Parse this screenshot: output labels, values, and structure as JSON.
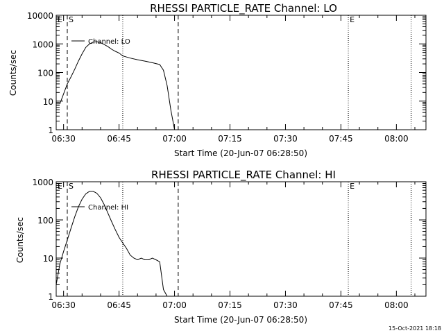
{
  "footer": {
    "timestamp": "15-Oct-2021 18:18"
  },
  "chart_data": [
    {
      "type": "line",
      "title": "RHESSI PARTICLE_RATE Channel: LO",
      "xlabel": "Start Time (20-Jun-07 06:28:50)",
      "ylabel": "Counts/sec",
      "y_scale": "log",
      "xlim": [
        "06:28",
        "08:08"
      ],
      "ylim": [
        1,
        10000
      ],
      "x_ticks": [
        "06:30",
        "06:45",
        "07:00",
        "07:15",
        "07:30",
        "07:45",
        "08:00"
      ],
      "y_ticks": [
        "1",
        "10",
        "100",
        "1000",
        "10000"
      ],
      "legend_position": "top-left",
      "markers": [
        {
          "label": "E",
          "time": "06:28",
          "style": "dotted"
        },
        {
          "label": "S",
          "time": "06:31",
          "style": "dashed"
        },
        {
          "label": "",
          "time": "06:46",
          "style": "dotted"
        },
        {
          "label": "",
          "time": "07:01",
          "style": "dashed"
        },
        {
          "label": "E",
          "time": "07:47",
          "style": "dotted"
        },
        {
          "label": "",
          "time": "08:04",
          "style": "dotted"
        }
      ],
      "series": [
        {
          "name": "Channel: LO",
          "x": [
            "06:29",
            "06:30",
            "06:31",
            "06:32",
            "06:33",
            "06:34",
            "06:35",
            "06:36",
            "06:37",
            "06:38",
            "06:39",
            "06:40",
            "06:41",
            "06:42",
            "06:43",
            "06:44",
            "06:45",
            "06:46",
            "06:48",
            "06:50",
            "06:52",
            "06:54",
            "06:56",
            "06:57",
            "06:58",
            "06:59",
            "07:00"
          ],
          "y": [
            8,
            18,
            40,
            70,
            130,
            250,
            450,
            750,
            1000,
            1150,
            1200,
            1100,
            950,
            800,
            650,
            550,
            480,
            380,
            320,
            280,
            250,
            220,
            190,
            120,
            35,
            5,
            1
          ]
        }
      ]
    },
    {
      "type": "line",
      "title": "RHESSI PARTICLE_RATE Channel: HI",
      "xlabel": "Start Time (20-Jun-07 06:28:50)",
      "ylabel": "Counts/sec",
      "y_scale": "log",
      "xlim": [
        "06:28",
        "08:08"
      ],
      "ylim": [
        1,
        1000
      ],
      "x_ticks": [
        "06:30",
        "06:45",
        "07:00",
        "07:15",
        "07:30",
        "07:45",
        "08:00"
      ],
      "y_ticks": [
        "1",
        "10",
        "100",
        "1000"
      ],
      "legend_position": "top-left",
      "markers": [
        {
          "label": "E",
          "time": "06:28",
          "style": "dotted"
        },
        {
          "label": "S",
          "time": "06:31",
          "style": "dashed"
        },
        {
          "label": "",
          "time": "06:46",
          "style": "dotted"
        },
        {
          "label": "",
          "time": "07:01",
          "style": "dashed"
        },
        {
          "label": "E",
          "time": "07:47",
          "style": "dotted"
        },
        {
          "label": "",
          "time": "08:04",
          "style": "dotted"
        }
      ],
      "series": [
        {
          "name": "Channel: HI",
          "x": [
            "06:28",
            "06:29",
            "06:30",
            "06:31",
            "06:32",
            "06:33",
            "06:34",
            "06:35",
            "06:36",
            "06:37",
            "06:38",
            "06:39",
            "06:40",
            "06:41",
            "06:42",
            "06:43",
            "06:44",
            "06:45",
            "06:46",
            "06:47",
            "06:48",
            "06:49",
            "06:50",
            "06:51",
            "06:52",
            "06:53",
            "06:54",
            "06:55",
            "06:56",
            "06:57",
            "06:58"
          ],
          "y": [
            2,
            7,
            15,
            30,
            60,
            120,
            220,
            350,
            480,
            560,
            560,
            500,
            380,
            250,
            150,
            90,
            55,
            35,
            25,
            18,
            12,
            10,
            9,
            10,
            9,
            9,
            10,
            9,
            8,
            1.5,
            1
          ]
        }
      ]
    }
  ]
}
